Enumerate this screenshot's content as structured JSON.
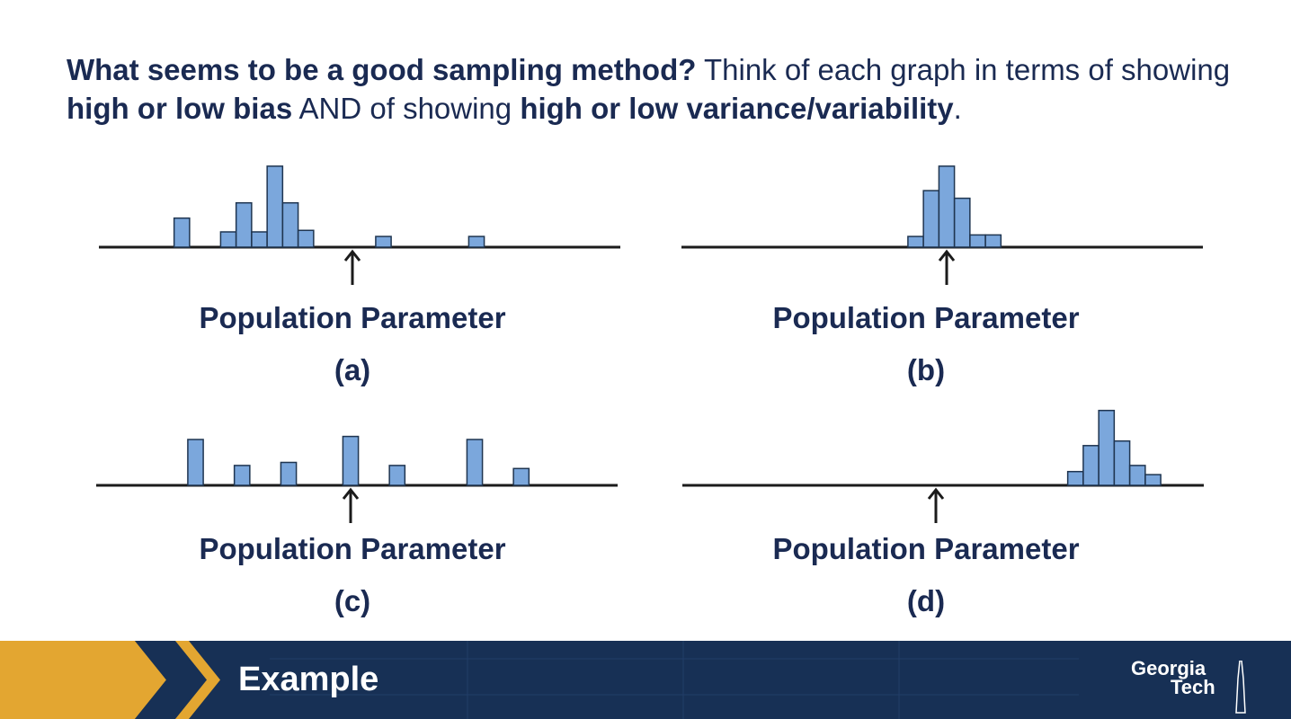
{
  "question": {
    "part1": "What seems to be a good sampling method?",
    "part2": " Think of each graph in terms of showing ",
    "part3": "high or low bias",
    "part4": " AND of showing ",
    "part5": "high or low variance/variability",
    "part6": "."
  },
  "colors": {
    "bar_fill": "#7ba7dc",
    "bar_stroke": "#1f3550",
    "text": "#1a2a52",
    "banner": "#173055",
    "banner_accent": "#e3a631"
  },
  "chart_data": [
    {
      "type": "bar",
      "label": "(a)",
      "xlabel": "Population Parameter",
      "bars": [
        {
          "x": -5.5,
          "h": 1.9
        },
        {
          "x": -4.0,
          "h": 1.0
        },
        {
          "x": -3.5,
          "h": 2.9
        },
        {
          "x": -3.0,
          "h": 1.0
        },
        {
          "x": -2.5,
          "h": 5.3
        },
        {
          "x": -2.0,
          "h": 2.9
        },
        {
          "x": -1.5,
          "h": 1.1
        },
        {
          "x": 1.0,
          "h": 0.7
        },
        {
          "x": 4.0,
          "h": 0.7
        }
      ],
      "parameter": 0
    },
    {
      "type": "bar",
      "label": "(b)",
      "xlabel": "Population Parameter",
      "bars": [
        {
          "x": -1.0,
          "h": 0.7
        },
        {
          "x": -0.5,
          "h": 3.7
        },
        {
          "x": 0.0,
          "h": 5.3
        },
        {
          "x": 0.5,
          "h": 3.2
        },
        {
          "x": 1.0,
          "h": 0.8
        },
        {
          "x": 1.5,
          "h": 0.8
        }
      ],
      "parameter": 0
    },
    {
      "type": "bar",
      "label": "(c)",
      "xlabel": "Population Parameter",
      "bars": [
        {
          "x": -5.0,
          "h": 3.0
        },
        {
          "x": -3.5,
          "h": 1.3
        },
        {
          "x": -2.0,
          "h": 1.5
        },
        {
          "x": 0.0,
          "h": 3.2
        },
        {
          "x": 1.5,
          "h": 1.3
        },
        {
          "x": 4.0,
          "h": 3.0
        },
        {
          "x": 5.5,
          "h": 1.1
        }
      ],
      "parameter": 0
    },
    {
      "type": "bar",
      "label": "(d)",
      "xlabel": "Population Parameter",
      "bars": [
        {
          "x": 4.5,
          "h": 0.9
        },
        {
          "x": 5.0,
          "h": 2.6
        },
        {
          "x": 5.5,
          "h": 4.9
        },
        {
          "x": 6.0,
          "h": 2.9
        },
        {
          "x": 6.5,
          "h": 1.3
        },
        {
          "x": 7.0,
          "h": 0.7
        }
      ],
      "parameter": 0
    }
  ],
  "banner": {
    "title": "Example",
    "logo_line1": "Georgia",
    "logo_line2": "Tech"
  }
}
